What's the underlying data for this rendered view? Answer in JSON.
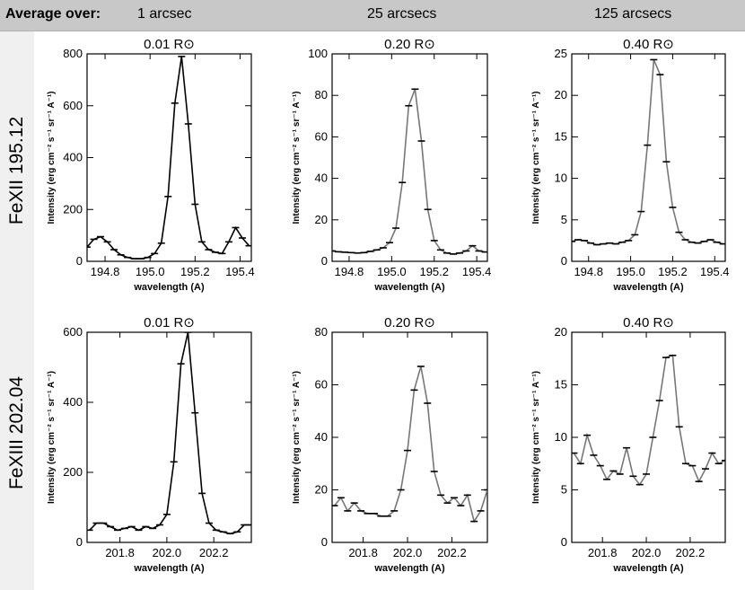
{
  "header": {
    "average_label": "Average over:",
    "columns": [
      "1 arcsec",
      "25 arcsecs",
      "125 arcsecs"
    ]
  },
  "row_labels": [
    "FeXII 195.12",
    "FeXIII 202.04"
  ],
  "colors": {
    "header_bg": "#c8c8c8",
    "line_dark": "#000000",
    "line_gray": "#777777"
  },
  "chart_data": [
    {
      "type": "line",
      "title": "0.01 R⊙",
      "xlabel": "wavelength (A)",
      "ylabel": "Intensity (erg cm⁻² s⁻¹ sr⁻¹ A⁻¹)",
      "xlim": [
        194.72,
        195.45
      ],
      "ylim": [
        0,
        800
      ],
      "xticks": [
        194.8,
        195.0,
        195.2,
        195.4
      ],
      "xtick_labels": [
        "194.8",
        "195.0",
        "195.2",
        "195.4"
      ],
      "yticks": [
        0,
        200,
        400,
        600,
        800
      ],
      "ytick_labels": [
        "0",
        "200",
        "400",
        "600",
        "800"
      ],
      "x": [
        194.72,
        194.75,
        194.78,
        194.81,
        194.84,
        194.87,
        194.9,
        194.93,
        194.96,
        194.99,
        195.02,
        195.05,
        195.08,
        195.11,
        195.14,
        195.17,
        195.2,
        195.23,
        195.26,
        195.29,
        195.32,
        195.35,
        195.38,
        195.41,
        195.44
      ],
      "y": [
        55,
        85,
        95,
        75,
        45,
        25,
        15,
        10,
        10,
        15,
        30,
        70,
        250,
        610,
        790,
        530,
        220,
        75,
        45,
        35,
        30,
        75,
        130,
        90,
        60
      ],
      "line": "dark"
    },
    {
      "type": "line",
      "title": "0.20 R⊙",
      "xlabel": "wavelength (A)",
      "ylabel": "Intensity (erg cm⁻² s⁻¹ sr⁻¹ A⁻¹)",
      "xlim": [
        194.72,
        195.45
      ],
      "ylim": [
        0,
        100
      ],
      "xticks": [
        194.8,
        195.0,
        195.2,
        195.4
      ],
      "xtick_labels": [
        "194.8",
        "195.0",
        "195.2",
        "195.4"
      ],
      "yticks": [
        0,
        20,
        40,
        60,
        80,
        100
      ],
      "ytick_labels": [
        "0",
        "20",
        "40",
        "60",
        "80",
        "100"
      ],
      "x": [
        194.72,
        194.75,
        194.78,
        194.81,
        194.84,
        194.87,
        194.9,
        194.93,
        194.96,
        194.99,
        195.02,
        195.05,
        195.08,
        195.11,
        195.14,
        195.17,
        195.2,
        195.23,
        195.26,
        195.29,
        195.32,
        195.35,
        195.38,
        195.41,
        195.44
      ],
      "y": [
        5,
        4.6,
        4.4,
        4.2,
        4,
        4.2,
        4.8,
        5.5,
        6.5,
        9,
        16,
        38,
        75,
        83,
        58,
        25,
        10,
        5.5,
        4,
        3.5,
        4,
        5,
        7.5,
        5,
        4.5
      ],
      "line": "gray"
    },
    {
      "type": "line",
      "title": "0.40 R⊙",
      "xlabel": "wavelength (A)",
      "ylabel": "Intensity (erg cm⁻² s⁻¹ sr⁻¹ A⁻¹)",
      "xlim": [
        194.72,
        195.45
      ],
      "ylim": [
        0,
        25
      ],
      "xticks": [
        194.8,
        195.0,
        195.2,
        195.4
      ],
      "xtick_labels": [
        "194.8",
        "195.0",
        "195.2",
        "195.4"
      ],
      "yticks": [
        0,
        5,
        10,
        15,
        20,
        25
      ],
      "ytick_labels": [
        "0",
        "5",
        "10",
        "15",
        "20",
        "25"
      ],
      "x": [
        194.72,
        194.75,
        194.78,
        194.81,
        194.84,
        194.87,
        194.9,
        194.93,
        194.96,
        194.99,
        195.02,
        195.05,
        195.08,
        195.11,
        195.14,
        195.17,
        195.2,
        195.23,
        195.26,
        195.29,
        195.32,
        195.35,
        195.38,
        195.41,
        195.44
      ],
      "y": [
        2.4,
        2.6,
        2.5,
        2.2,
        2,
        2.1,
        2.2,
        2.1,
        2.3,
        2.5,
        3.2,
        6,
        14,
        24.3,
        22.5,
        12,
        6.5,
        3.5,
        2.6,
        2.3,
        2.2,
        2.4,
        2.6,
        2.3,
        2.1
      ],
      "line": "gray"
    },
    {
      "type": "line",
      "title": "0.01 R⊙",
      "xlabel": "wavelength (A)",
      "ylabel": "Intensity (erg cm⁻² s⁻¹ sr⁻¹ A⁻¹)",
      "xlim": [
        201.66,
        202.36
      ],
      "ylim": [
        0,
        600
      ],
      "xticks": [
        201.8,
        202.0,
        202.2
      ],
      "xtick_labels": [
        "201.8",
        "202.0",
        "202.2"
      ],
      "yticks": [
        0,
        200,
        400,
        600
      ],
      "ytick_labels": [
        "0",
        "200",
        "400",
        "600"
      ],
      "x": [
        201.67,
        201.7,
        201.73,
        201.76,
        201.79,
        201.82,
        201.85,
        201.88,
        201.91,
        201.94,
        201.97,
        202.0,
        202.03,
        202.06,
        202.09,
        202.12,
        202.15,
        202.18,
        202.21,
        202.24,
        202.27,
        202.3,
        202.33,
        202.36
      ],
      "y": [
        35,
        55,
        55,
        45,
        35,
        40,
        45,
        35,
        45,
        40,
        50,
        80,
        230,
        510,
        600,
        370,
        140,
        55,
        35,
        30,
        25,
        30,
        50,
        50
      ],
      "line": "dark"
    },
    {
      "type": "line",
      "title": "0.20 R⊙",
      "xlabel": "wavelength (A)",
      "ylabel": "Intensity (erg cm⁻² s⁻¹ sr⁻¹ A⁻¹)",
      "xlim": [
        201.66,
        202.36
      ],
      "ylim": [
        0,
        80
      ],
      "xticks": [
        201.8,
        202.0,
        202.2
      ],
      "xtick_labels": [
        "201.8",
        "202.0",
        "202.2"
      ],
      "yticks": [
        0,
        20,
        40,
        60,
        80
      ],
      "ytick_labels": [
        "0",
        "20",
        "40",
        "60",
        "80"
      ],
      "x": [
        201.67,
        201.7,
        201.73,
        201.76,
        201.79,
        201.82,
        201.85,
        201.88,
        201.91,
        201.94,
        201.97,
        202.0,
        202.03,
        202.06,
        202.09,
        202.12,
        202.15,
        202.18,
        202.21,
        202.24,
        202.27,
        202.3,
        202.33,
        202.36
      ],
      "y": [
        14,
        17,
        12,
        15,
        12,
        11,
        11,
        10,
        10,
        12,
        20,
        35,
        58,
        67,
        53,
        27,
        18,
        15,
        17,
        14,
        18,
        8,
        12,
        20
      ],
      "line": "gray"
    },
    {
      "type": "line",
      "title": "0.40 R⊙",
      "xlabel": "wavelength (A)",
      "ylabel": "Intensity (erg cm⁻² s⁻¹ sr⁻¹ A⁻¹)",
      "xlim": [
        201.66,
        202.36
      ],
      "ylim": [
        0,
        20
      ],
      "xticks": [
        201.8,
        202.0,
        202.2
      ],
      "xtick_labels": [
        "201.8",
        "202.0",
        "202.2"
      ],
      "yticks": [
        0,
        5,
        10,
        15,
        20
      ],
      "ytick_labels": [
        "0",
        "5",
        "10",
        "15",
        "20"
      ],
      "x": [
        201.67,
        201.7,
        201.73,
        201.76,
        201.79,
        201.82,
        201.85,
        201.88,
        201.91,
        201.94,
        201.97,
        202.0,
        202.03,
        202.06,
        202.09,
        202.12,
        202.15,
        202.18,
        202.21,
        202.24,
        202.27,
        202.3,
        202.33,
        202.36
      ],
      "y": [
        8.5,
        7.5,
        10.2,
        8.3,
        7.3,
        6,
        6.8,
        6.5,
        9,
        6.3,
        5.5,
        6.5,
        10,
        13.5,
        17.6,
        17.8,
        11,
        7.5,
        7.3,
        5.8,
        7,
        8.5,
        7.5,
        7.8
      ],
      "line": "gray"
    }
  ]
}
